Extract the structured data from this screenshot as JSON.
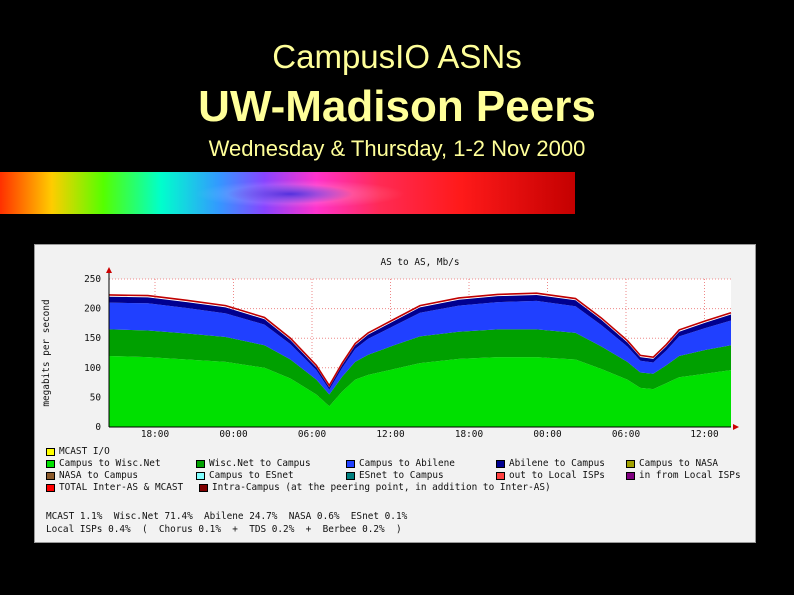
{
  "slide": {
    "title": "CampusIO ASNs",
    "heading": "UW-Madison Peers",
    "subtitle": "Wednesday & Thursday, 1-2 Nov 2000"
  },
  "chart_data": {
    "type": "area",
    "title": "AS to AS, Mb/s",
    "ylabel": "megabits per second",
    "ylim": [
      0,
      250
    ],
    "yticks": [
      0,
      50,
      100,
      150,
      200,
      250
    ],
    "xticks": [
      "18:00",
      "00:00",
      "06:00",
      "12:00",
      "18:00",
      "00:00",
      "06:00",
      "12:00"
    ],
    "grid": true,
    "legend_placement": "below",
    "x_hours": [
      0,
      3,
      6,
      9,
      12,
      14,
      16,
      17,
      18,
      19,
      20,
      22,
      24,
      27,
      30,
      33,
      36,
      38,
      40,
      41,
      42,
      43,
      44,
      46,
      48
    ],
    "series": [
      {
        "name": "Campus to Wisc.Net",
        "color": "#00e000",
        "values": [
          120,
          118,
          114,
          110,
          100,
          82,
          55,
          35,
          60,
          80,
          88,
          98,
          108,
          115,
          118,
          118,
          114,
          98,
          80,
          66,
          64,
          74,
          84,
          90,
          96
        ]
      },
      {
        "name": "Wisc.Net to Campus",
        "color": "#00a000",
        "values": [
          45,
          45,
          44,
          42,
          38,
          32,
          25,
          20,
          25,
          30,
          34,
          40,
          45,
          46,
          47,
          47,
          45,
          38,
          30,
          26,
          26,
          30,
          36,
          40,
          42
        ]
      },
      {
        "name": "Campus to Abilene",
        "color": "#2040ff",
        "values": [
          45,
          46,
          43,
          40,
          35,
          26,
          16,
          8,
          15,
          22,
          27,
          33,
          40,
          44,
          46,
          48,
          45,
          36,
          26,
          20,
          19,
          25,
          33,
          37,
          42
        ]
      },
      {
        "name": "Abilene to Campus",
        "color": "#000090",
        "values": [
          10,
          10,
          10,
          10,
          9,
          7,
          5,
          4,
          5,
          6,
          7,
          8,
          9,
          10,
          10,
          10,
          10,
          9,
          7,
          6,
          6,
          7,
          8,
          9,
          10
        ]
      },
      {
        "name": "TOTAL Inter-AS & MCAST",
        "color": "#c00000",
        "values": [
          223,
          222,
          214,
          205,
          185,
          150,
          104,
          70,
          108,
          141,
          159,
          182,
          205,
          218,
          224,
          226,
          217,
          184,
          146,
          121,
          118,
          139,
          164,
          179,
          193
        ]
      }
    ],
    "legend": [
      {
        "label": "MCAST I/O",
        "color": "#ffff00"
      },
      {
        "label": "Campus to Wisc.Net",
        "color": "#00e000"
      },
      {
        "label": "Wisc.Net to Campus",
        "color": "#00a000"
      },
      {
        "label": "Campus to Abilene",
        "color": "#2040ff"
      },
      {
        "label": "Abilene to Campus",
        "color": "#000090"
      },
      {
        "label": "Campus to NASA",
        "color": "#a0a000"
      },
      {
        "label": "NASA to Campus",
        "color": "#8b5a2b"
      },
      {
        "label": "Campus to ESnet",
        "color": "#80ffff"
      },
      {
        "label": "ESnet to Campus",
        "color": "#008080"
      },
      {
        "label": "out to Local ISPs",
        "color": "#ff4040"
      },
      {
        "label": "in from Local ISPs",
        "color": "#800080"
      },
      {
        "label": "TOTAL Inter-AS & MCAST",
        "color": "#ff0000"
      },
      {
        "label": "Intra-Campus (at the peering point, in addition to Inter-AS)",
        "color": "#800000"
      }
    ],
    "stats_line1": "MCAST 1.1%  Wisc.Net 71.4%  Abilene 24.7%  NASA 0.6%  ESnet 0.1%",
    "stats_line2": "Local ISPs 0.4%  (  Chorus 0.1%  +  TDS 0.2%  +  Berbee 0.2%  )"
  }
}
